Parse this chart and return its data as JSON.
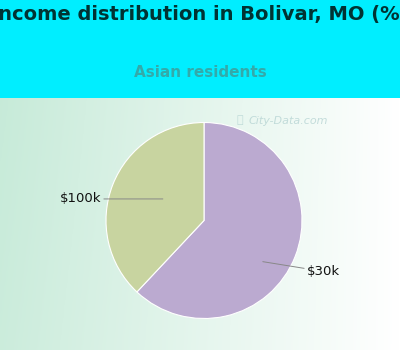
{
  "title": "Income distribution in Bolivar, MO (%)",
  "subtitle": "Asian residents",
  "title_color": "#003333",
  "subtitle_color": "#33aaaa",
  "background_color": "#00eeff",
  "chart_bg_left": "#c8e8d8",
  "chart_bg_right": "#ffffff",
  "slices": [
    {
      "label": "$30k",
      "value": 62,
      "color": "#bbaad0"
    },
    {
      "label": "$100k",
      "value": 38,
      "color": "#c8d4a0"
    }
  ],
  "label_fontsize": 9.5,
  "title_fontsize": 14,
  "subtitle_fontsize": 11,
  "watermark_text": "City-Data.com",
  "watermark_color": "#aacccc",
  "watermark_alpha": 0.65
}
